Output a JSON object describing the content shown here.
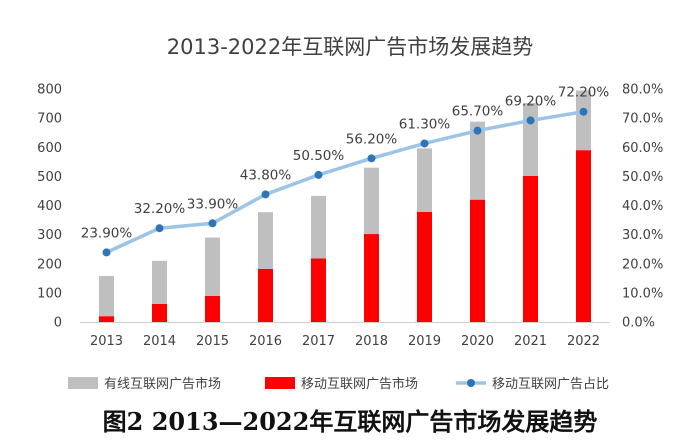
{
  "chart_data": {
    "type": "bar",
    "title": "2013-2022年互联网广告市场发展趋势",
    "caption": "图2 2013—2022年互联网广告市场发展趋势",
    "categories": [
      "2013",
      "2014",
      "2015",
      "2016",
      "2017",
      "2018",
      "2019",
      "2020",
      "2021",
      "2022"
    ],
    "left_axis": {
      "ylim": [
        0,
        800
      ],
      "ticks": [
        "0",
        "100",
        "200",
        "300",
        "400",
        "500",
        "600",
        "700",
        "800"
      ]
    },
    "right_axis": {
      "ylim": [
        0,
        80
      ],
      "ticks": [
        "0.0%",
        "10.0%",
        "20.0%",
        "30.0%",
        "40.0%",
        "50.0%",
        "60.0%",
        "70.0%",
        "80.0%"
      ]
    },
    "series": [
      {
        "name": "有线互联网广告市场",
        "kind": "stacked-bar",
        "color": "#BFBFBF",
        "values": [
          138,
          148,
          200,
          195,
          215,
          228,
          218,
          268,
          250,
          205
        ]
      },
      {
        "name": "移动互联网广告市场",
        "kind": "stacked-bar",
        "color": "#FF0000",
        "values": [
          20,
          62,
          90,
          182,
          218,
          302,
          378,
          420,
          502,
          590
        ]
      },
      {
        "name": "移动互联网广告占比",
        "kind": "line",
        "axis": "right",
        "color": "#9DC3E6",
        "marker_color": "#2E75B6",
        "values": [
          23.9,
          32.2,
          33.9,
          43.8,
          50.5,
          56.2,
          61.3,
          65.7,
          69.2,
          72.2
        ],
        "labels": [
          "23.90%",
          "32.20%",
          "33.90%",
          "43.80%",
          "50.50%",
          "56.20%",
          "61.30%",
          "65.70%",
          "69.20%",
          "72.20%"
        ]
      }
    ],
    "grid": false,
    "legend_position": "bottom"
  }
}
